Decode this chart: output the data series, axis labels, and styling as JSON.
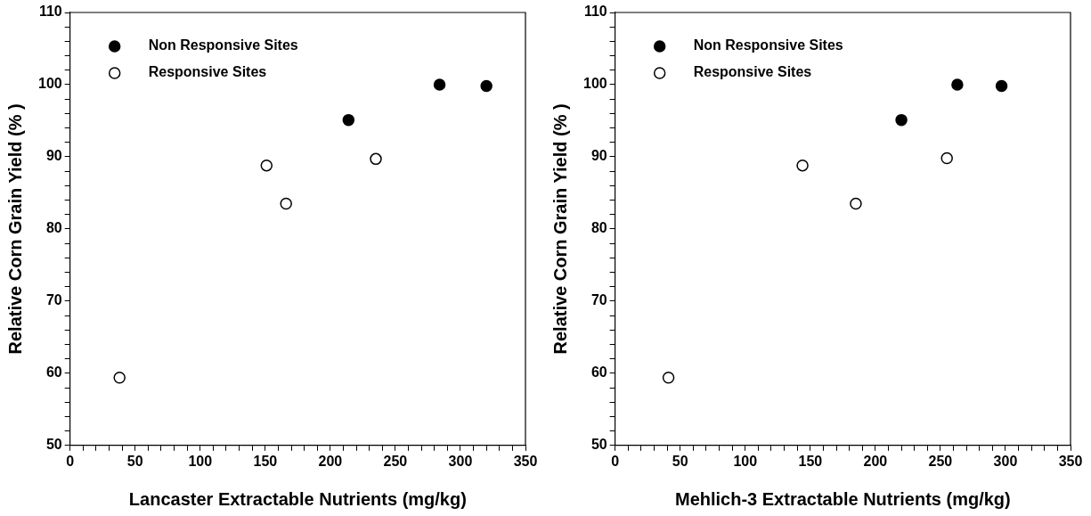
{
  "chart_data": [
    {
      "type": "scatter",
      "xlabel": "Lancaster Extractable Nutrients (mg/kg)",
      "ylabel": "Relative Corn Grain Yield (% )",
      "xlim": [
        0,
        350
      ],
      "ylim": [
        50,
        110
      ],
      "xticks": [
        0,
        {
          "value": 10,
          "label": null
        },
        {
          "value": 20,
          "label": null
        },
        {
          "value": 30,
          "label": null
        },
        {
          "value": 40,
          "label": null
        },
        50,
        {
          "value": 60,
          "label": null
        },
        {
          "value": 70,
          "label": null
        },
        {
          "value": 80,
          "label": null
        },
        {
          "value": 90,
          "label": null
        },
        100,
        {
          "value": 110,
          "label": null
        },
        {
          "value": 120,
          "label": null
        },
        {
          "value": 130,
          "label": null
        },
        {
          "value": 140,
          "label": null
        },
        150,
        {
          "value": 160,
          "label": null
        },
        {
          "value": 170,
          "label": null
        },
        {
          "value": 180,
          "label": null
        },
        {
          "value": 190,
          "label": null
        },
        200,
        {
          "value": 210,
          "label": null
        },
        {
          "value": 220,
          "label": null
        },
        {
          "value": 230,
          "label": null
        },
        {
          "value": 240,
          "label": null
        },
        250,
        {
          "value": 260,
          "label": null
        },
        {
          "value": 270,
          "label": null
        },
        {
          "value": 280,
          "label": null
        },
        {
          "value": 290,
          "label": null
        },
        300,
        {
          "value": 310,
          "label": null
        },
        {
          "value": 320,
          "label": null
        },
        {
          "value": 330,
          "label": null
        },
        {
          "value": 340,
          "label": null
        },
        350
      ],
      "yticks": [
        50,
        {
          "value": 52,
          "label": null
        },
        {
          "value": 54,
          "label": null
        },
        {
          "value": 56,
          "label": null
        },
        {
          "value": 58,
          "label": null
        },
        60,
        {
          "value": 62,
          "label": null
        },
        {
          "value": 64,
          "label": null
        },
        {
          "value": 66,
          "label": null
        },
        {
          "value": 68,
          "label": null
        },
        70,
        {
          "value": 72,
          "label": null
        },
        {
          "value": 74,
          "label": null
        },
        {
          "value": 76,
          "label": null
        },
        {
          "value": 78,
          "label": null
        },
        80,
        {
          "value": 82,
          "label": null
        },
        {
          "value": 84,
          "label": null
        },
        {
          "value": 86,
          "label": null
        },
        {
          "value": 88,
          "label": null
        },
        90,
        {
          "value": 92,
          "label": null
        },
        {
          "value": 94,
          "label": null
        },
        {
          "value": 96,
          "label": null
        },
        {
          "value": 98,
          "label": null
        },
        100,
        {
          "value": 102,
          "label": null
        },
        {
          "value": 104,
          "label": null
        },
        {
          "value": 106,
          "label": null
        },
        {
          "value": 108,
          "label": null
        },
        110
      ],
      "grid": false,
      "legend": "top left",
      "marker": "circle",
      "series": [
        {
          "name": "Non Responsive Sites",
          "color": "#000000",
          "x": [
            214,
            284,
            320
          ],
          "values": [
            95.1,
            100,
            99.8
          ]
        },
        {
          "name": "Responsive Sites",
          "color": "#ffffff",
          "x": [
            38,
            151,
            166,
            235
          ],
          "values": [
            59.4,
            88.8,
            83.5,
            89.7
          ]
        }
      ]
    },
    {
      "type": "scatter",
      "xlabel": "Mehlich-3 Extractable Nutrients (mg/kg)",
      "ylabel": "Relative Corn Grain Yield (% )",
      "xlim": [
        0,
        350
      ],
      "ylim": [
        50,
        110
      ],
      "xticks": [
        0,
        {
          "value": 10,
          "label": null
        },
        {
          "value": 20,
          "label": null
        },
        {
          "value": 30,
          "label": null
        },
        {
          "value": 40,
          "label": null
        },
        50,
        {
          "value": 60,
          "label": null
        },
        {
          "value": 70,
          "label": null
        },
        {
          "value": 80,
          "label": null
        },
        {
          "value": 90,
          "label": null
        },
        100,
        {
          "value": 110,
          "label": null
        },
        {
          "value": 120,
          "label": null
        },
        {
          "value": 130,
          "label": null
        },
        {
          "value": 140,
          "label": null
        },
        150,
        {
          "value": 160,
          "label": null
        },
        {
          "value": 170,
          "label": null
        },
        {
          "value": 180,
          "label": null
        },
        {
          "value": 190,
          "label": null
        },
        200,
        {
          "value": 210,
          "label": null
        },
        {
          "value": 220,
          "label": null
        },
        {
          "value": 230,
          "label": null
        },
        {
          "value": 240,
          "label": null
        },
        250,
        {
          "value": 260,
          "label": null
        },
        {
          "value": 270,
          "label": null
        },
        {
          "value": 280,
          "label": null
        },
        {
          "value": 290,
          "label": null
        },
        300,
        {
          "value": 310,
          "label": null
        },
        {
          "value": 320,
          "label": null
        },
        {
          "value": 330,
          "label": null
        },
        {
          "value": 340,
          "label": null
        },
        350
      ],
      "yticks": [
        50,
        {
          "value": 52,
          "label": null
        },
        {
          "value": 54,
          "label": null
        },
        {
          "value": 56,
          "label": null
        },
        {
          "value": 58,
          "label": null
        },
        60,
        {
          "value": 62,
          "label": null
        },
        {
          "value": 64,
          "label": null
        },
        {
          "value": 66,
          "label": null
        },
        {
          "value": 68,
          "label": null
        },
        70,
        {
          "value": 72,
          "label": null
        },
        {
          "value": 74,
          "label": null
        },
        {
          "value": 76,
          "label": null
        },
        {
          "value": 78,
          "label": null
        },
        80,
        {
          "value": 82,
          "label": null
        },
        {
          "value": 84,
          "label": null
        },
        {
          "value": 86,
          "label": null
        },
        {
          "value": 88,
          "label": null
        },
        90,
        {
          "value": 92,
          "label": null
        },
        {
          "value": 94,
          "label": null
        },
        {
          "value": 96,
          "label": null
        },
        {
          "value": 98,
          "label": null
        },
        100,
        {
          "value": 102,
          "label": null
        },
        {
          "value": 104,
          "label": null
        },
        {
          "value": 106,
          "label": null
        },
        {
          "value": 108,
          "label": null
        },
        110
      ],
      "grid": false,
      "legend": "top left",
      "marker": "circle",
      "series": [
        {
          "name": "Non Responsive Sites",
          "color": "#000000",
          "x": [
            220,
            263,
            297
          ],
          "values": [
            95.1,
            100,
            99.8
          ]
        },
        {
          "name": "Responsive Sites",
          "color": "#ffffff",
          "x": [
            41,
            144,
            185,
            255
          ],
          "values": [
            59.4,
            88.8,
            83.5,
            89.8
          ]
        }
      ]
    }
  ]
}
